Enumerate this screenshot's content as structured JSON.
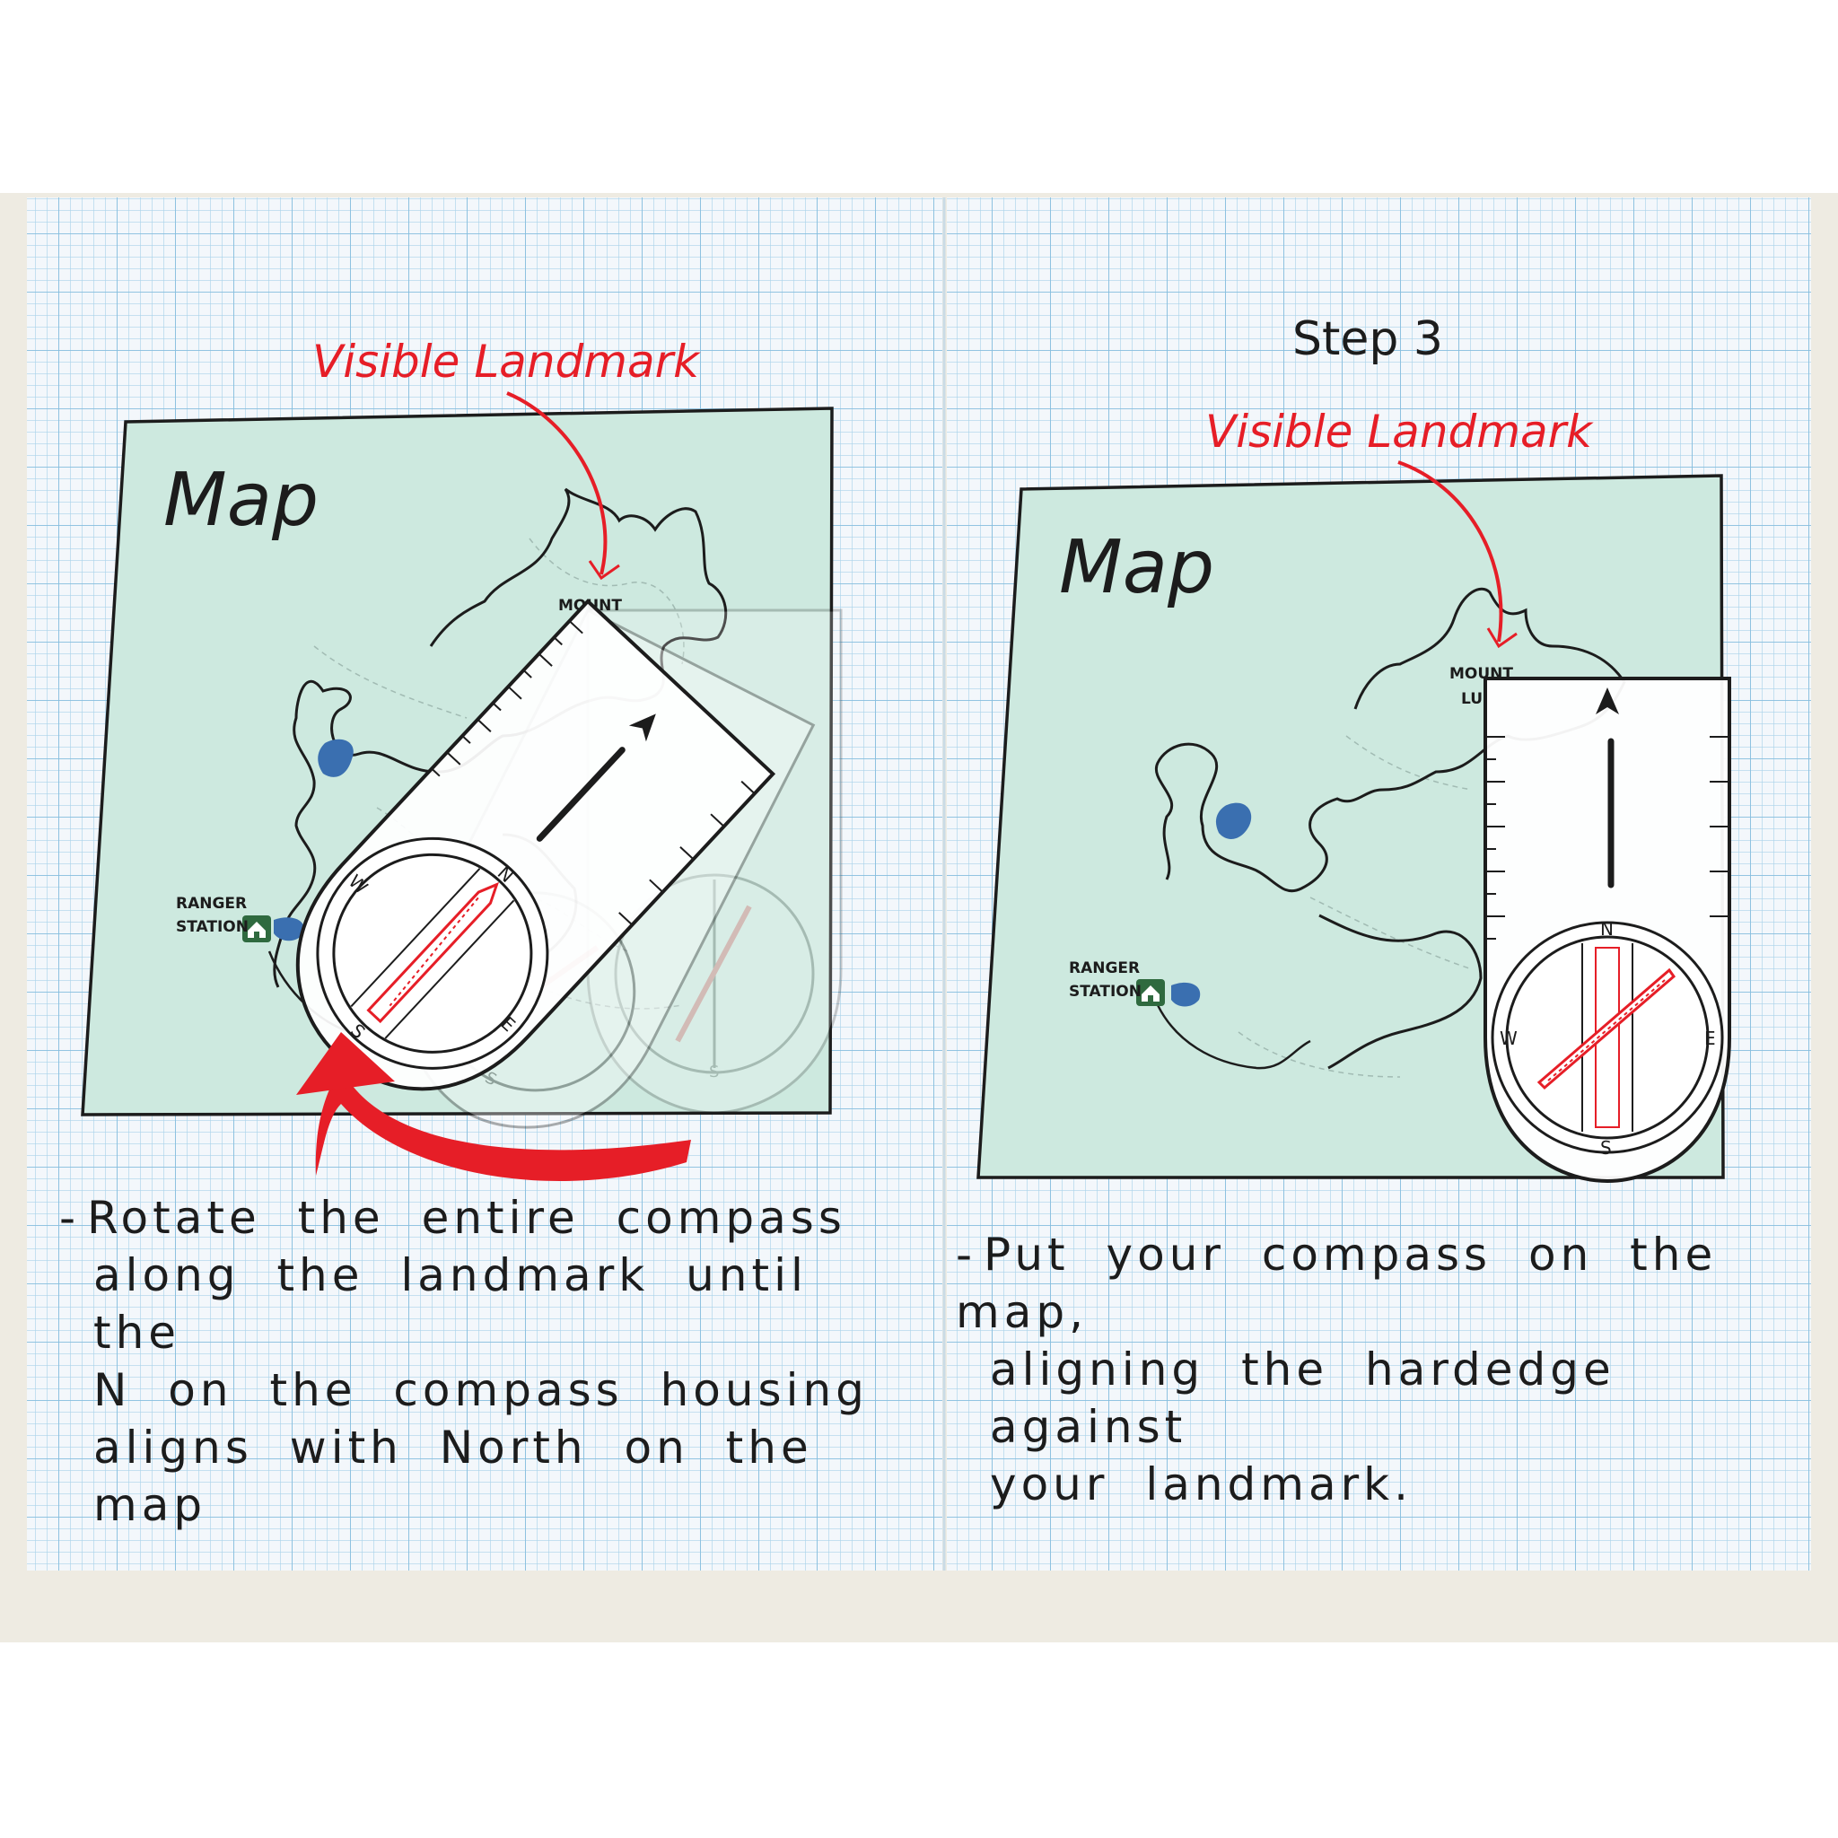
{
  "panels": [
    {
      "step_label": "",
      "landmark_label": "Visible Landmark",
      "map_title": "Map",
      "mount_label": "MOUNT",
      "ranger_label_line1": "RANGER",
      "ranger_label_line2": "STATION",
      "caption_lines": [
        "Rotate the entire compass",
        "along the landmark until the",
        "N on the compass housing",
        "aligns with North on the map"
      ]
    },
    {
      "step_label": "Step 3",
      "landmark_label": "Visible Landmark",
      "map_title": "Map",
      "mount_label": "MOUNT",
      "mount_label_2": "LUI",
      "ranger_label_line1": "RANGER",
      "ranger_label_line2": "STATION",
      "caption_lines": [
        "Put your compass on the map,",
        "aligning the hardedge against",
        "your landmark."
      ]
    }
  ],
  "compass_letters": {
    "n": "N",
    "s": "S",
    "e": "E",
    "w": "W"
  },
  "colors": {
    "paper": "#f1f5fa",
    "grid": "#9fcde6",
    "map_fill": "#cde9df",
    "accent_red": "#e61e27",
    "lake": "#3a6fb0",
    "ranger_icon": "#2f6a3f",
    "ink": "#1c1c1c"
  }
}
